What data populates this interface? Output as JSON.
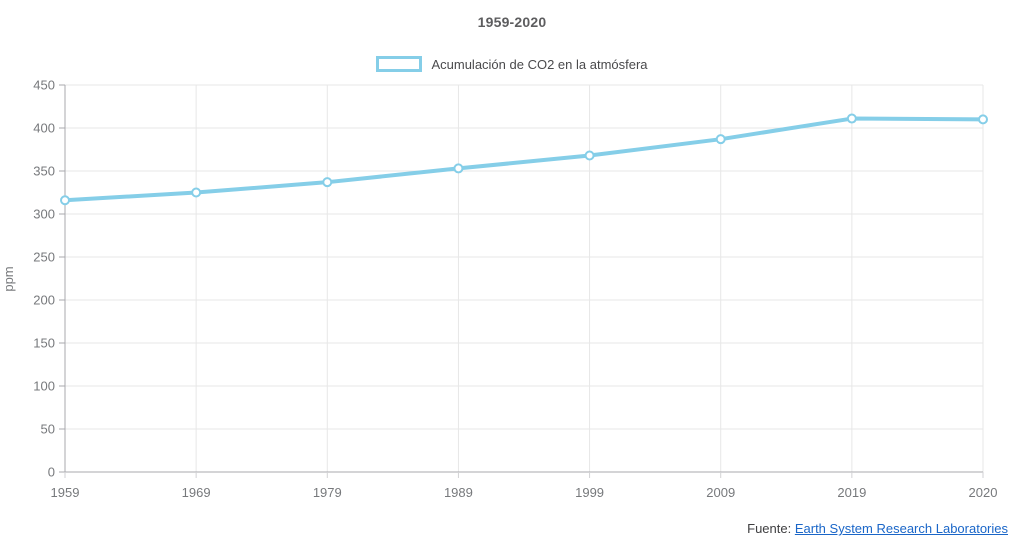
{
  "title": "1959-2020",
  "legend": {
    "label": "Acumulación de CO2 en la atmósfera",
    "swatch_border": "#85CEE8",
    "swatch_fill": "#FFFFFF"
  },
  "footer": {
    "prefix": "Fuente: ",
    "link_text": "Earth System Research Laboratories",
    "link_color": "#1A66C8"
  },
  "chart_data": {
    "type": "line",
    "title": "1959-2020",
    "x": [
      "1959",
      "1969",
      "1979",
      "1989",
      "1999",
      "2009",
      "2019",
      "2020"
    ],
    "series": [
      {
        "name": "Acumulación de CO2 en la atmósfera",
        "values": [
          316,
          325,
          337,
          353,
          368,
          387,
          411,
          410
        ],
        "color": "#85CEE8",
        "marker": "circle",
        "marker_fill": "#FFFFFF"
      }
    ],
    "xlabel": "",
    "ylabel": "ppm",
    "ylim": [
      0,
      450
    ],
    "ytick_step": 50,
    "grid": true,
    "legend_position": "top",
    "colors": {
      "grid_line": "#E7E7E7",
      "axis_line": "#A8A8AD",
      "x_tick_mark": "#D2D2D4",
      "tick_text": "#77797C"
    }
  }
}
